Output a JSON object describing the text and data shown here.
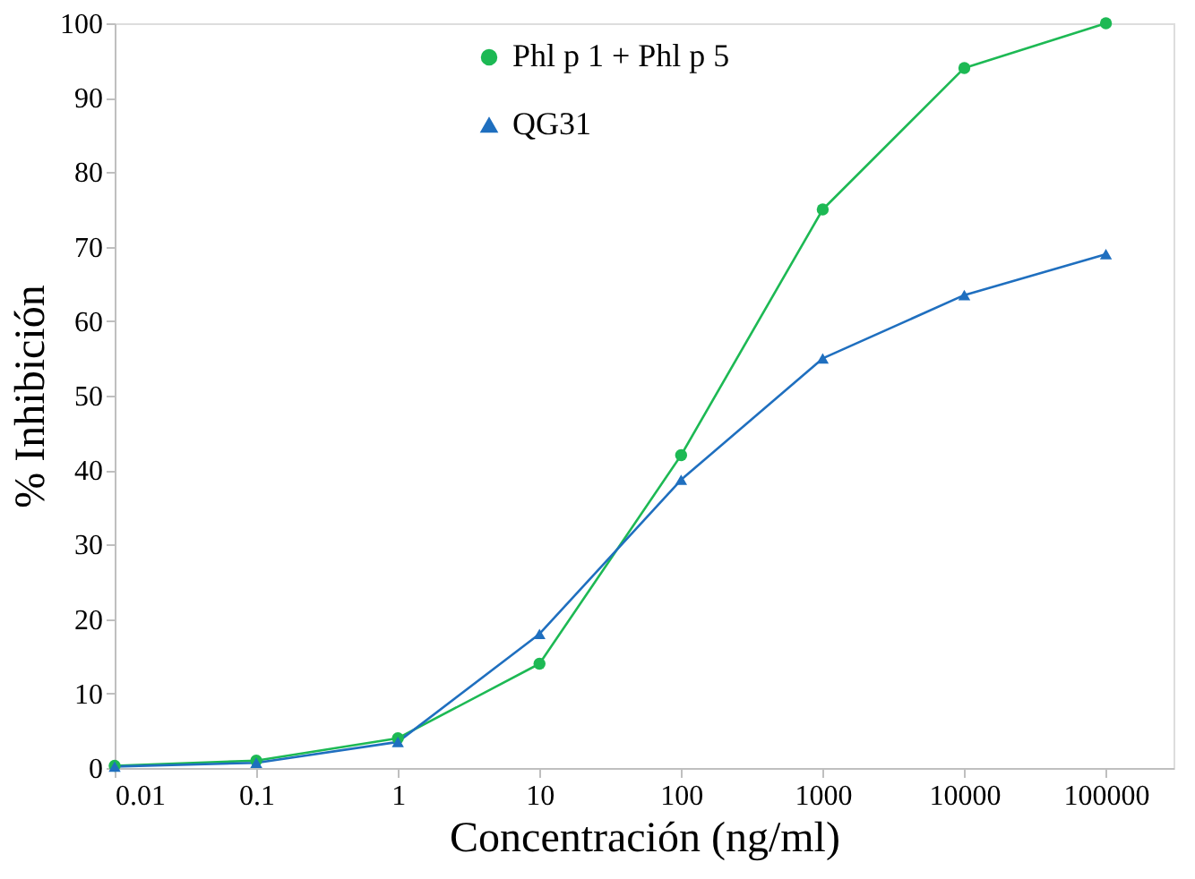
{
  "chart_data": {
    "type": "line",
    "xlabel": "Concentración (ng/ml)",
    "ylabel": "% Inhibición",
    "x": [
      0.01,
      0.1,
      1,
      10,
      100,
      1000,
      10000,
      100000
    ],
    "series": [
      {
        "name": "Phl p 1 + Phl p 5",
        "color": "#1db954",
        "marker": "circle",
        "values": [
          0.3,
          1,
          4,
          14,
          42,
          75,
          94,
          100
        ]
      },
      {
        "name": "QG31",
        "color": "#1f6fbf",
        "marker": "triangle",
        "values": [
          0.2,
          0.7,
          3.5,
          18,
          38.7,
          55,
          63.5,
          69
        ]
      }
    ],
    "log": "x",
    "xlim": [
      0.01,
      300000
    ],
    "xticks": [
      0.01,
      0.1,
      1,
      10,
      100,
      1000,
      10000,
      100000
    ],
    "ylim": [
      0,
      100
    ],
    "yticks": [
      0,
      10,
      20,
      30,
      40,
      50,
      60,
      70,
      80,
      90,
      100
    ],
    "grid": false,
    "legend": "top left",
    "line_style": "solid"
  }
}
